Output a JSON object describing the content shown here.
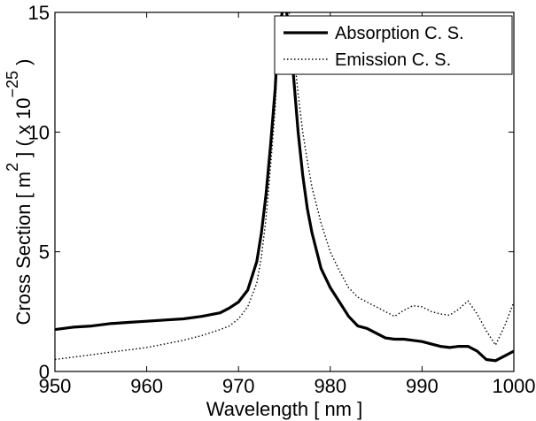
{
  "chart_data": {
    "type": "line",
    "title": "",
    "xlabel": "Wavelength [ nm ]",
    "ylabel": "Cross Section [ m 2 ] ( x 10 −25 )",
    "ylabel_parts": {
      "main": "Cross Section [ m",
      "sup1": "2",
      "mid": " ] ( x 10",
      "sup2": "−25",
      "end": " )"
    },
    "xlim": [
      950,
      1000
    ],
    "ylim": [
      0,
      15
    ],
    "xticks": [
      950,
      960,
      970,
      980,
      990,
      1000
    ],
    "yticks": [
      0,
      5,
      10,
      15
    ],
    "grid": false,
    "legend_position": "top-right",
    "series": [
      {
        "name": "Absorption C. S.",
        "style": "solid",
        "color": "#000000",
        "x": [
          950,
          952,
          954,
          956,
          958,
          960,
          962,
          964,
          966,
          968,
          969,
          970,
          971,
          972,
          972.5,
          973,
          973.5,
          974,
          974.3,
          975,
          975.7,
          976,
          976.5,
          977,
          977.5,
          978,
          979,
          980,
          981,
          982,
          983,
          984,
          985,
          986,
          987,
          988,
          989,
          990,
          991,
          992,
          993,
          994,
          995,
          996,
          997,
          998,
          999,
          1000
        ],
        "y": [
          1.75,
          1.85,
          1.9,
          2.0,
          2.05,
          2.1,
          2.15,
          2.2,
          2.3,
          2.45,
          2.65,
          2.9,
          3.4,
          4.6,
          5.8,
          7.4,
          9.5,
          11.8,
          14.0,
          15.5,
          14.0,
          12.3,
          10.0,
          8.2,
          6.8,
          5.8,
          4.3,
          3.5,
          2.9,
          2.3,
          1.9,
          1.8,
          1.6,
          1.4,
          1.35,
          1.35,
          1.3,
          1.25,
          1.15,
          1.05,
          1.0,
          1.05,
          1.05,
          0.85,
          0.5,
          0.45,
          0.65,
          0.85
        ]
      },
      {
        "name": "Emission C. S.",
        "style": "dotted",
        "color": "#000000",
        "x": [
          950,
          952,
          954,
          956,
          958,
          960,
          962,
          964,
          966,
          968,
          969,
          970,
          971,
          972,
          972.5,
          973,
          973.5,
          974,
          974.3,
          975,
          975.7,
          976,
          976.5,
          977,
          977.5,
          978,
          979,
          980,
          981,
          982,
          983,
          984,
          985,
          986,
          987,
          988,
          989,
          990,
          991,
          992,
          993,
          994,
          995,
          996,
          997,
          998,
          999,
          1000
        ],
        "y": [
          0.5,
          0.6,
          0.7,
          0.8,
          0.9,
          1.0,
          1.15,
          1.3,
          1.5,
          1.75,
          1.9,
          2.2,
          2.7,
          3.7,
          4.8,
          6.4,
          8.6,
          11.0,
          13.5,
          15.5,
          14.8,
          13.4,
          11.6,
          10.0,
          8.8,
          7.7,
          6.2,
          5.0,
          4.2,
          3.5,
          3.1,
          2.9,
          2.7,
          2.5,
          2.3,
          2.55,
          2.75,
          2.7,
          2.5,
          2.4,
          2.35,
          2.6,
          2.95,
          2.4,
          1.7,
          1.1,
          1.9,
          2.9
        ]
      }
    ]
  }
}
